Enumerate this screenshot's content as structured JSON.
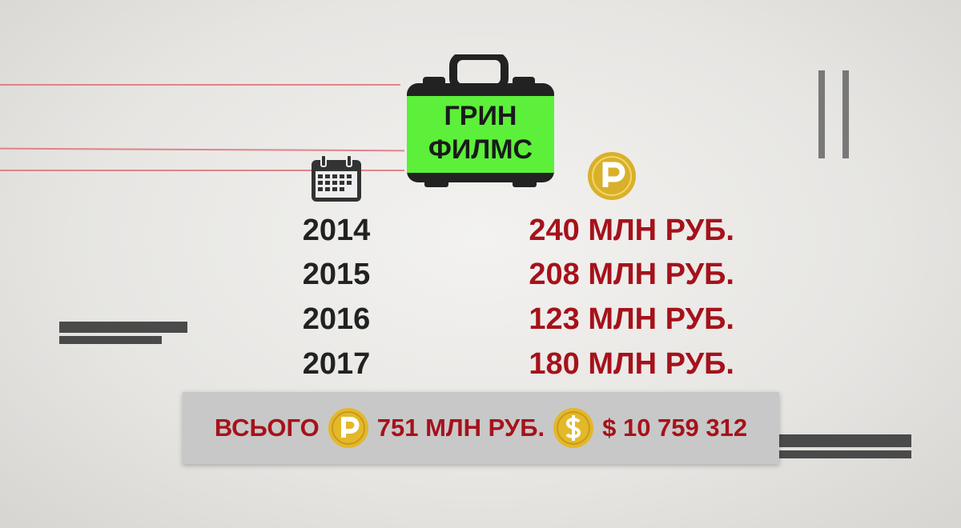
{
  "company": {
    "line1": "ГРИН",
    "line2": "ФИЛМС"
  },
  "icons": {
    "calendar": "calendar-icon",
    "ruble": "ruble-coin-icon",
    "dollar": "dollar-coin-icon",
    "briefcase": "briefcase-icon"
  },
  "rows": [
    {
      "year": "2014",
      "amount": "240 МЛН РУБ."
    },
    {
      "year": "2015",
      "amount": "208 МЛН РУБ."
    },
    {
      "year": "2016",
      "amount": "123 МЛН РУБ."
    },
    {
      "year": "2017",
      "amount": "180 МЛН РУБ."
    }
  ],
  "total": {
    "label": "ВСЬОГО",
    "rub": "751 МЛН РУБ.",
    "usd": "$ 10 759 312"
  },
  "colors": {
    "accent_red": "#a5121b",
    "green": "#5cf03a",
    "gold": "#d9b02a",
    "gray_box": "#c8c8c8"
  }
}
